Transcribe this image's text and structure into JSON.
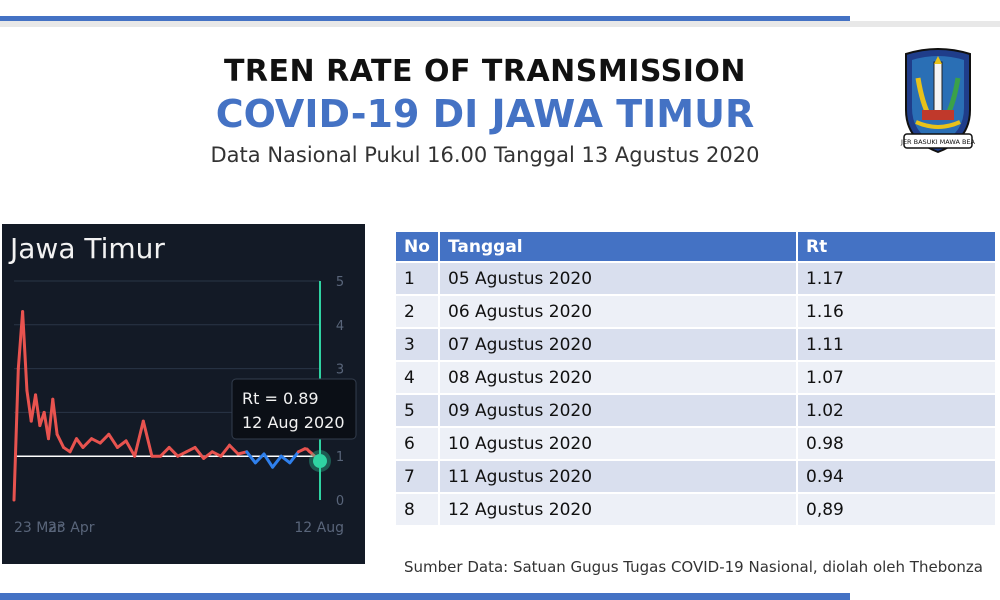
{
  "header": {
    "title_line1": "TREN RATE OF TRANSMISSION",
    "title_line2": "COVID-19 DI JAWA TIMUR",
    "subtitle": "Data Nasional Pukul 16.00 Tanggal 13 Agustus 2020"
  },
  "logo": {
    "banner_text": "JER BASUKI MAWA BEA"
  },
  "colors": {
    "accent": "#4472c4",
    "line_high": "#e8534f",
    "line_low": "#2f80ed",
    "marker": "#2fd3a2",
    "panel_bg": "#131a26"
  },
  "chart_data": {
    "type": "line",
    "title": "Jawa Timur",
    "x_tick_labels": [
      "23 Mar",
      "23 Apr",
      "12 Aug"
    ],
    "y_ticks": [
      0,
      1,
      2,
      3,
      4,
      5
    ],
    "ylim": [
      0,
      5
    ],
    "xlim": [
      "2020-03-23",
      "2020-08-12"
    ],
    "threshold": 1,
    "series": [
      {
        "x": [
          "2020-03-23",
          "2020-03-25",
          "2020-03-27",
          "2020-03-29",
          "2020-03-31",
          "2020-04-02",
          "2020-04-04",
          "2020-04-06",
          "2020-04-08",
          "2020-04-10",
          "2020-04-12",
          "2020-04-15",
          "2020-04-18",
          "2020-04-21",
          "2020-04-24",
          "2020-04-28",
          "2020-05-02",
          "2020-05-06",
          "2020-05-10",
          "2020-05-14",
          "2020-05-18",
          "2020-05-22",
          "2020-05-26",
          "2020-05-30",
          "2020-06-03",
          "2020-06-07",
          "2020-06-11",
          "2020-06-15",
          "2020-06-19",
          "2020-06-23",
          "2020-06-27",
          "2020-07-01",
          "2020-07-05",
          "2020-07-09",
          "2020-07-13",
          "2020-07-17",
          "2020-07-21",
          "2020-07-25",
          "2020-07-29",
          "2020-08-02",
          "2020-08-05",
          "2020-08-06",
          "2020-08-07",
          "2020-08-08",
          "2020-08-09",
          "2020-08-10",
          "2020-08-11",
          "2020-08-12"
        ],
        "values": [
          0.0,
          3.0,
          4.3,
          2.5,
          1.8,
          2.4,
          1.7,
          2.0,
          1.4,
          2.3,
          1.5,
          1.2,
          1.1,
          1.4,
          1.2,
          1.4,
          1.3,
          1.5,
          1.2,
          1.35,
          1.0,
          1.8,
          1.0,
          1.0,
          1.2,
          1.0,
          1.1,
          1.2,
          0.95,
          1.1,
          1.0,
          1.25,
          1.05,
          1.1,
          0.85,
          1.05,
          0.75,
          1.0,
          0.85,
          1.1,
          1.17,
          1.16,
          1.11,
          1.07,
          1.02,
          0.98,
          0.94,
          0.89
        ]
      }
    ],
    "tooltip": {
      "line1": "Rt = 0.89",
      "line2": "12 Aug 2020"
    }
  },
  "table": {
    "headers": [
      "No",
      "Tanggal",
      "Rt"
    ],
    "rows": [
      [
        "1",
        "05 Agustus 2020",
        "1.17"
      ],
      [
        "2",
        "06 Agustus 2020",
        "1.16"
      ],
      [
        "3",
        "07 Agustus 2020",
        "1.11"
      ],
      [
        "4",
        "08 Agustus 2020",
        "1.07"
      ],
      [
        "5",
        "09 Agustus 2020",
        "1.02"
      ],
      [
        "6",
        "10 Agustus 2020",
        "0.98"
      ],
      [
        "7",
        "11 Agustus 2020",
        "0.94"
      ],
      [
        "8",
        "12 Agustus 2020",
        "0,89"
      ]
    ]
  },
  "source": "Sumber Data: Satuan Gugus Tugas COVID-19 Nasional, diolah oleh Thebonza"
}
